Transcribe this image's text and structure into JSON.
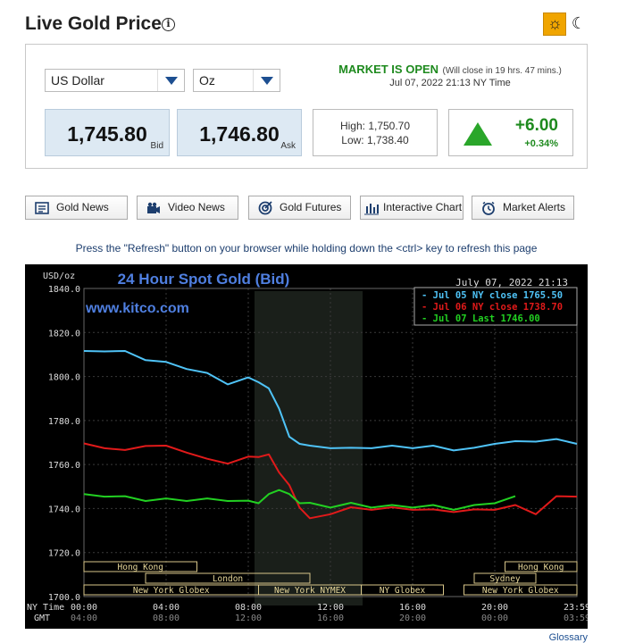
{
  "header": {
    "title": "Live Gold Price",
    "info_symbol": "i",
    "sun_symbol": "☼",
    "moon_symbol": "☾"
  },
  "controls": {
    "currency": "US Dollar",
    "unit": "Oz"
  },
  "market": {
    "status": "MARKET IS OPEN",
    "close_note": "(Will close in 19 hrs. 47 mins.)",
    "timestamp": "Jul 07, 2022 21:13 NY Time"
  },
  "prices": {
    "bid": "1,745.80",
    "bid_label": "Bid",
    "ask": "1,746.80",
    "ask_label": "Ask",
    "high": "High: 1,750.70",
    "low": "Low: 1,738.40",
    "change": "+6.00",
    "change_pct": "+0.34%"
  },
  "buttons": {
    "gold_news": "Gold News",
    "video_news": "Video News",
    "gold_futures": "Gold Futures",
    "interactive_chart": "Interactive Chart",
    "market_alerts": "Market Alerts"
  },
  "note": "Press the \"Refresh\" button on your browser while holding down the <ctrl> key to refresh this page",
  "glossary": "Glossary",
  "colors": {
    "accent_green": "#1e8a1e",
    "brand_blue": "#1d4f91",
    "series_blue": "#4fc3f7",
    "series_red": "#e11a1a",
    "series_green": "#22d022"
  },
  "chart_data": {
    "type": "line",
    "title": "24 Hour Spot Gold (Bid)",
    "timestamp": "July 07, 2022 21:13",
    "watermark": "www.kitco.com",
    "ylabel": "USD/oz",
    "ylim": [
      1700,
      1840
    ],
    "yticks": [
      "1840.0",
      "1820.0",
      "1800.0",
      "1780.0",
      "1760.0",
      "1740.0",
      "1720.0",
      "1700.0"
    ],
    "ny_time_label": "NY Time",
    "gmt_label": "GMT",
    "xticks_ny": [
      "00:00",
      "04:00",
      "08:00",
      "12:00",
      "16:00",
      "20:00",
      "23:59"
    ],
    "xticks_gmt": [
      "04:00",
      "08:00",
      "12:00",
      "16:00",
      "20:00",
      "00:00",
      "03:59"
    ],
    "x": [
      0,
      1,
      2,
      3,
      4,
      5,
      6,
      7,
      8,
      8.5,
      9,
      9.5,
      10,
      10.5,
      11,
      12,
      13,
      14,
      15,
      16,
      17,
      18,
      19,
      20,
      21,
      22,
      23,
      24
    ],
    "series": [
      {
        "name": "Jul 05 NY close 1765.50",
        "color": "#4fc3f7",
        "values": [
          1811,
          1812,
          1811,
          1808,
          1806,
          1804,
          1801,
          1797,
          1799,
          1798,
          1794,
          1786,
          1772,
          1770,
          1768,
          1768,
          1767,
          1768,
          1768,
          1768,
          1768,
          1767,
          1767,
          1770,
          1770,
          1771,
          1771,
          1770
        ]
      },
      {
        "name": "Jul 06 NY close 1738.70",
        "color": "#e11a1a",
        "values": [
          1769,
          1768,
          1766,
          1769,
          1768,
          1766,
          1762,
          1761,
          1763,
          1764,
          1764,
          1757,
          1750,
          1741,
          1735,
          1738,
          1740,
          1740,
          1740,
          1740,
          1739,
          1739,
          1739,
          1740,
          1741,
          1738,
          1745,
          1746
        ]
      },
      {
        "name": "Jul 07 Last 1746.00",
        "color": "#22d022",
        "values": [
          1746,
          1746,
          1745,
          1744,
          1744,
          1744,
          1744,
          1744,
          1743,
          1743,
          1746,
          1749,
          1746,
          1743,
          1742,
          1741,
          1742,
          1741,
          1741,
          1741,
          1741,
          1740,
          1741,
          1743,
          1745,
          null,
          null,
          null
        ]
      }
    ],
    "session_labels": {
      "hong_kong": "Hong Kong",
      "london": "London",
      "new_york_globex": "New York Globex",
      "new_york_nymex": "New York NYMEX",
      "ny_globex": "NY Globex",
      "sydney": "Sydney",
      "hong_kong_2": "Hong Kong",
      "new_york_globex_2": "New York Globex"
    },
    "grid": true,
    "legend_position": "top-right"
  }
}
